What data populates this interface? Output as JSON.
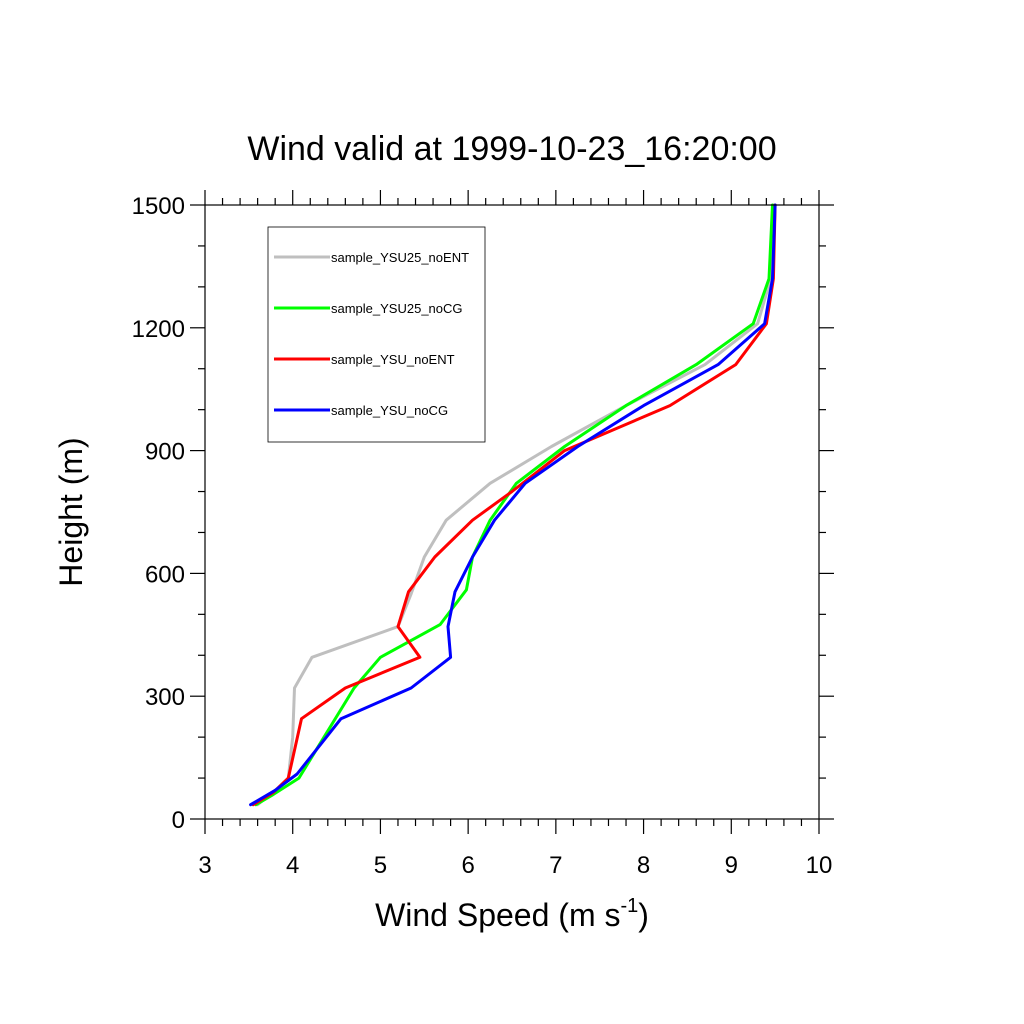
{
  "chart_data": {
    "type": "line",
    "title": "Wind valid at 1999-10-23_16:20:00",
    "xlabel_main": "Wind Speed (m s",
    "xlabel_sup": "-1",
    "xlabel_tail": ")",
    "ylabel": "Height (m)",
    "xlim": [
      3,
      10
    ],
    "ylim": [
      0,
      1500
    ],
    "x_ticks": [
      3,
      4,
      5,
      6,
      7,
      8,
      9,
      10
    ],
    "y_ticks": [
      0,
      300,
      600,
      900,
      1200,
      1500
    ],
    "x_minor_step": 0.2,
    "y_minor_step": 100,
    "grid": false,
    "legend_position": "top-left",
    "series": [
      {
        "name": "sample_YSU25_noENT",
        "color": "#bfbfbf",
        "x": [
          3.6,
          3.8,
          3.95,
          4.0,
          4.02,
          4.22,
          5.2,
          5.35,
          5.5,
          5.75,
          6.25,
          6.95,
          7.8,
          8.7,
          9.3,
          9.45,
          9.48
        ],
        "y": [
          35,
          70,
          100,
          200,
          320,
          395,
          470,
          550,
          640,
          730,
          820,
          910,
          1010,
          1110,
          1210,
          1320,
          1500
        ]
      },
      {
        "name": "sample_YSU25_noCG",
        "color": "#00ff00",
        "x": [
          3.58,
          3.78,
          4.07,
          4.3,
          4.7,
          5.0,
          5.68,
          5.98,
          6.05,
          6.25,
          6.55,
          7.1,
          7.8,
          8.6,
          9.25,
          9.43,
          9.47
        ],
        "y": [
          35,
          60,
          100,
          180,
          320,
          395,
          475,
          560,
          640,
          730,
          820,
          910,
          1010,
          1110,
          1210,
          1320,
          1500
        ]
      },
      {
        "name": "sample_YSU_noENT",
        "color": "#ff0000",
        "x": [
          3.55,
          3.78,
          3.95,
          4.1,
          4.6,
          5.45,
          5.2,
          5.32,
          5.62,
          6.05,
          6.5,
          7.1,
          8.3,
          9.05,
          9.4,
          9.48,
          9.5
        ],
        "y": [
          35,
          65,
          100,
          245,
          320,
          395,
          470,
          555,
          640,
          730,
          800,
          900,
          1010,
          1110,
          1210,
          1320,
          1500
        ]
      },
      {
        "name": "sample_YSU_noCG",
        "color": "#0000ff",
        "x": [
          3.52,
          3.8,
          4.05,
          4.55,
          5.35,
          5.8,
          5.77,
          5.85,
          6.05,
          6.3,
          6.65,
          7.25,
          8.0,
          8.85,
          9.38,
          9.47,
          9.5
        ],
        "y": [
          35,
          70,
          110,
          245,
          320,
          395,
          470,
          555,
          640,
          730,
          820,
          910,
          1010,
          1110,
          1210,
          1320,
          1500
        ]
      }
    ]
  }
}
